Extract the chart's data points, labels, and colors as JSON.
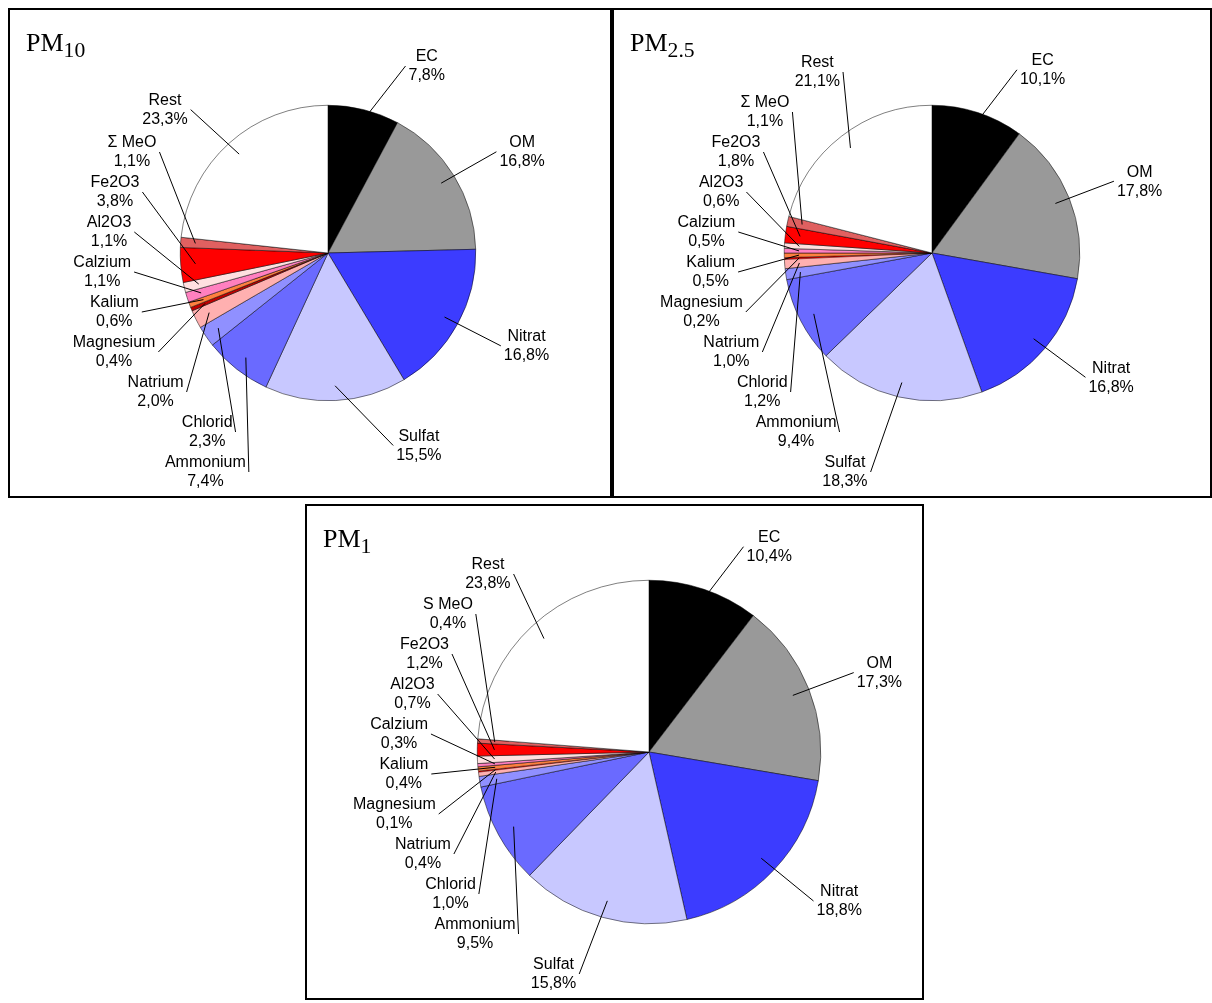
{
  "chart_data": [
    {
      "type": "pie",
      "title": "PM$_{10}$",
      "categories": [
        "EC",
        "OM",
        "Nitrat",
        "Sulfat",
        "Ammonium",
        "Chlorid",
        "Natrium",
        "Magnesium",
        "Kalium",
        "Calzium",
        "Al2O3",
        "Fe2O3",
        "Σ MeO",
        "Rest"
      ],
      "values": [
        7.8,
        16.8,
        16.8,
        15.5,
        7.4,
        2.3,
        2.0,
        0.4,
        0.6,
        1.1,
        1.1,
        3.8,
        1.1,
        23.3
      ],
      "value_labels": [
        "7,8%",
        "16,8%",
        "16,8%",
        "15,5%",
        "7,4%",
        "2,3%",
        "2,0%",
        "0,4%",
        "0,6%",
        "1,1%",
        "1,1%",
        "3,8%",
        "1,1%",
        "23,3%"
      ],
      "colors": [
        "#000000",
        "#999999",
        "#3c3cff",
        "#c8c8ff",
        "#6a6aff",
        "#9090ff",
        "#ffb0b0",
        "#c00000",
        "#ff8040",
        "#ff80c0",
        "#ffe0e0",
        "#ff0000",
        "#e06060",
        "#ffffff"
      ]
    },
    {
      "type": "pie",
      "title": "PM$_{2.5}$",
      "categories": [
        "EC",
        "OM",
        "Nitrat",
        "Sulfat",
        "Ammonium",
        "Chlorid",
        "Natrium",
        "Magnesium",
        "Kalium",
        "Calzium",
        "Al2O3",
        "Fe2O3",
        "Σ MeO",
        "Rest"
      ],
      "values": [
        10.1,
        17.8,
        16.8,
        18.3,
        9.4,
        1.2,
        1.0,
        0.2,
        0.5,
        0.5,
        0.6,
        1.8,
        1.1,
        21.1
      ],
      "value_labels": [
        "10,1%",
        "17,8%",
        "16,8%",
        "18,3%",
        "9,4%",
        "1,2%",
        "1,0%",
        "0,2%",
        "0,5%",
        "0,5%",
        "0,6%",
        "1,8%",
        "1,1%",
        "21,1%"
      ],
      "colors": [
        "#000000",
        "#999999",
        "#3c3cff",
        "#c8c8ff",
        "#6a6aff",
        "#9090ff",
        "#ffb0b0",
        "#c00000",
        "#ff8040",
        "#ff80c0",
        "#ffe0e0",
        "#ff0000",
        "#e06060",
        "#ffffff"
      ]
    },
    {
      "type": "pie",
      "title": "PM$_{1}$",
      "categories": [
        "EC",
        "OM",
        "Nitrat",
        "Sulfat",
        "Ammonium",
        "Chlorid",
        "Natrium",
        "Magnesium",
        "Kalium",
        "Calzium",
        "Al2O3",
        "Fe2O3",
        "S MeO",
        "Rest"
      ],
      "values": [
        10.4,
        17.3,
        18.8,
        15.8,
        9.5,
        1.0,
        0.4,
        0.1,
        0.4,
        0.3,
        0.7,
        1.2,
        0.4,
        23.8
      ],
      "value_labels": [
        "10,4%",
        "17,3%",
        "18,8%",
        "15,8%",
        "9,5%",
        "1,0%",
        "0,4%",
        "0,1%",
        "0,4%",
        "0,3%",
        "0,7%",
        "1,2%",
        "0,4%",
        "23,8%"
      ],
      "colors": [
        "#000000",
        "#999999",
        "#3c3cff",
        "#c8c8ff",
        "#6a6aff",
        "#9090ff",
        "#ffb0b0",
        "#c00000",
        "#ff8040",
        "#ff80c0",
        "#ffe0e0",
        "#ff0000",
        "#e06060",
        "#ffffff"
      ]
    }
  ]
}
